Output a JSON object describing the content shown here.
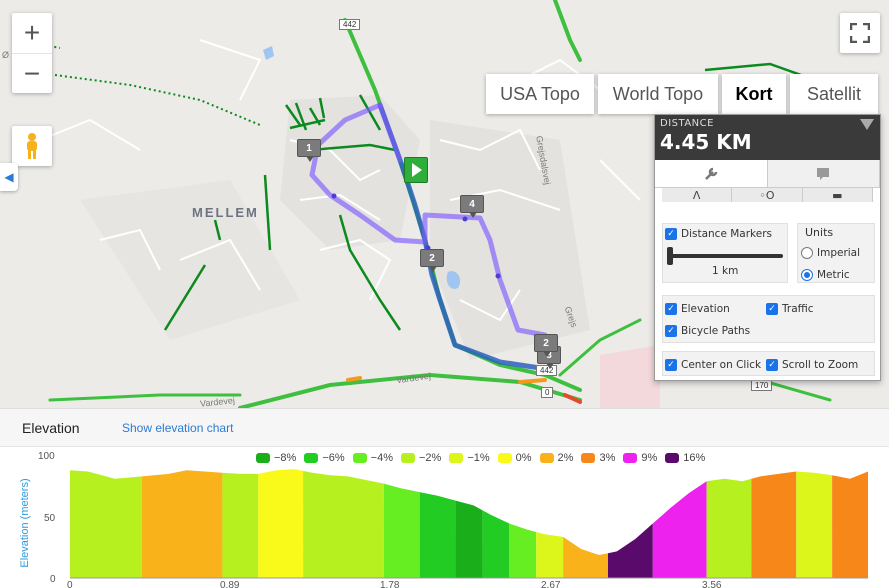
{
  "map": {
    "zoom_in": "+",
    "zoom_out": "−",
    "map_types": [
      {
        "label": "USA Topo",
        "active": false
      },
      {
        "label": "World Topo",
        "active": false
      },
      {
        "label": "Kort",
        "active": true
      },
      {
        "label": "Satellit",
        "active": false
      }
    ],
    "town_label": "MELLEM",
    "road_labels": [
      "Grejsdalsvej",
      "Grejs",
      "Vardevej",
      "Vardevej",
      "Ø"
    ],
    "road_shields": [
      "442",
      "442",
      "170",
      "0"
    ],
    "markers": [
      "1",
      "2",
      "3",
      "4",
      "2"
    ],
    "icons": [
      "zoom-in-icon",
      "zoom-out-icon",
      "pegman-icon",
      "fullscreen-icon",
      "start-flag-icon"
    ]
  },
  "distance_panel": {
    "label": "DISTANCE",
    "value": "4.45 KM",
    "distance_markers_label": "Distance Markers",
    "slider_value": "1 km",
    "units_title": "Units",
    "imperial_label": "Imperial",
    "metric_label": "Metric",
    "selected_unit": "metric",
    "options": {
      "elevation": "Elevation",
      "traffic": "Traffic",
      "bicycle_paths": "Bicycle Paths",
      "center_on_click": "Center on Click",
      "scroll_to_zoom": "Scroll to Zoom"
    }
  },
  "elevation": {
    "title": "Elevation",
    "show_chart_link": "Show elevation chart",
    "legend": [
      {
        "label": "−8%",
        "color": "#1aae1a"
      },
      {
        "label": "−6%",
        "color": "#22cc22"
      },
      {
        "label": "−4%",
        "color": "#66ee22"
      },
      {
        "label": "−2%",
        "color": "#b6f01e"
      },
      {
        "label": "−1%",
        "color": "#dcf51a"
      },
      {
        "label": "0%",
        "color": "#f9f91a"
      },
      {
        "label": "2%",
        "color": "#f9b21a"
      },
      {
        "label": "3%",
        "color": "#f8871a"
      },
      {
        "label": "9%",
        "color": "#ee22ee"
      },
      {
        "label": "16%",
        "color": "#5a0a6a"
      }
    ],
    "ylabel": "Elevation (meters)"
  },
  "chart_data": {
    "type": "area",
    "ylabel": "Elevation (meters)",
    "ylim": [
      0,
      100
    ],
    "yticks": [
      "100",
      "50",
      "0"
    ],
    "xlim": [
      0,
      4.45
    ],
    "xticks": [
      "0",
      "0.89",
      "1.78",
      "2.67",
      "3.56"
    ],
    "x": [
      0,
      0.1,
      0.25,
      0.4,
      0.55,
      0.65,
      0.75,
      0.85,
      0.95,
      1.05,
      1.15,
      1.25,
      1.35,
      1.45,
      1.55,
      1.65,
      1.75,
      1.85,
      1.95,
      2.05,
      2.15,
      2.25,
      2.35,
      2.45,
      2.55,
      2.65,
      2.75,
      2.85,
      2.95,
      3.05,
      3.15,
      3.25,
      3.35,
      3.45,
      3.55,
      3.65,
      3.75,
      3.85,
      3.95,
      4.05,
      4.15,
      4.25,
      4.35,
      4.45
    ],
    "y": [
      89,
      88,
      82,
      84,
      86,
      89,
      88,
      87,
      86,
      86,
      89,
      90,
      87,
      85,
      84,
      81,
      78,
      74,
      71,
      68,
      64,
      60,
      52,
      45,
      40,
      36,
      34,
      24,
      19,
      22,
      32,
      45,
      58,
      70,
      80,
      82,
      80,
      84,
      86,
      88,
      87,
      85,
      82,
      88
    ],
    "segments": [
      {
        "from": 0,
        "to": 0.4,
        "grade": "−2%"
      },
      {
        "from": 0.4,
        "to": 0.85,
        "grade": "2%"
      },
      {
        "from": 0.85,
        "to": 1.05,
        "grade": "−2%"
      },
      {
        "from": 1.05,
        "to": 1.3,
        "grade": "0%"
      },
      {
        "from": 1.3,
        "to": 1.75,
        "grade": "−2%"
      },
      {
        "from": 1.75,
        "to": 1.95,
        "grade": "−4%"
      },
      {
        "from": 1.95,
        "to": 2.15,
        "grade": "−6%"
      },
      {
        "from": 2.15,
        "to": 2.3,
        "grade": "−8%"
      },
      {
        "from": 2.3,
        "to": 2.45,
        "grade": "−6%"
      },
      {
        "from": 2.45,
        "to": 2.6,
        "grade": "−4%"
      },
      {
        "from": 2.6,
        "to": 2.75,
        "grade": "−1%"
      },
      {
        "from": 2.75,
        "to": 3.0,
        "grade": "2%"
      },
      {
        "from": 3.0,
        "to": 3.25,
        "grade": "16%"
      },
      {
        "from": 3.25,
        "to": 3.55,
        "grade": "9%"
      },
      {
        "from": 3.55,
        "to": 3.8,
        "grade": "−2%"
      },
      {
        "from": 3.8,
        "to": 4.05,
        "grade": "3%"
      },
      {
        "from": 4.05,
        "to": 4.25,
        "grade": "−1%"
      },
      {
        "from": 4.25,
        "to": 4.45,
        "grade": "3%"
      }
    ]
  }
}
